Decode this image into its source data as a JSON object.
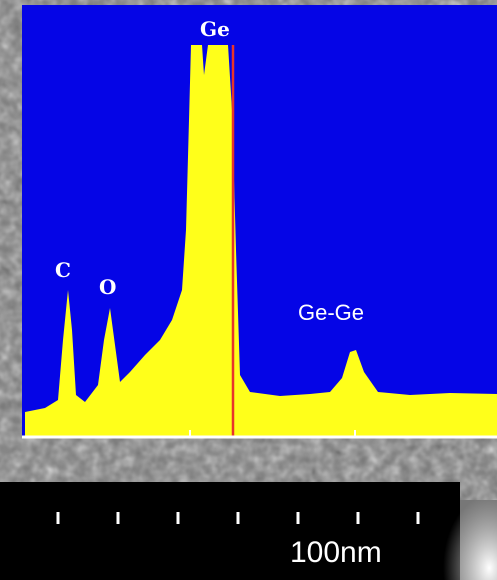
{
  "spectrum": {
    "peaks": {
      "ge": "Ge",
      "c": "C",
      "o": "O",
      "ge_ge": "Ge-Ge"
    }
  },
  "scale_bar": {
    "label": "100nm"
  }
}
